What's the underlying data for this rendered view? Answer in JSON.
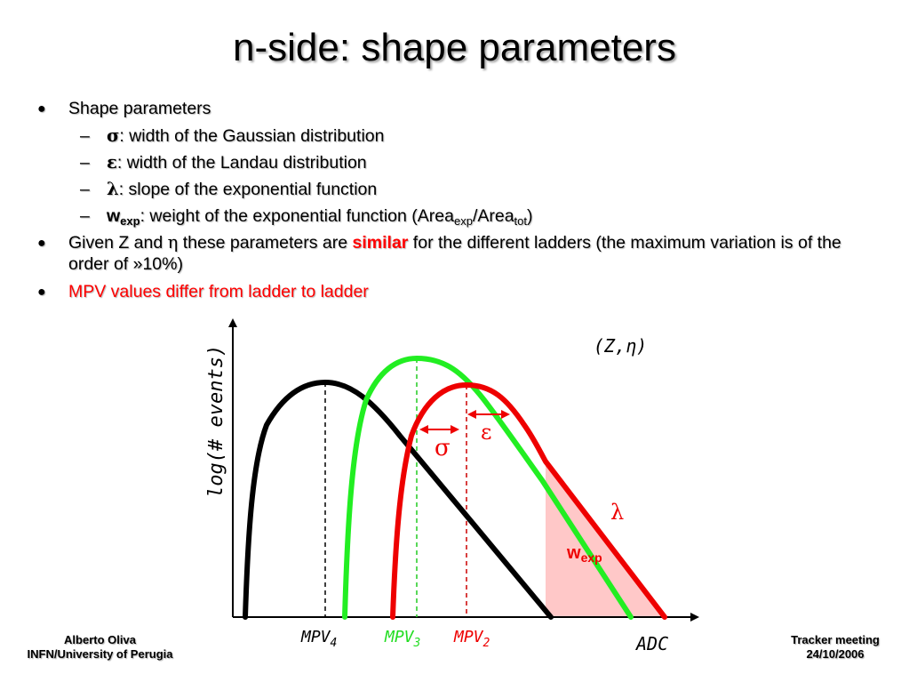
{
  "title": "n-side: shape parameters",
  "bullets": {
    "b1": "Shape parameters",
    "s1_sym": "σ",
    "s1_text": ": width of the Gaussian distribution",
    "s2_sym": "ε",
    "s2_text": ": width of the Landau distribution",
    "s3_sym": "λ",
    "s3_text": ": slope of the exponential function",
    "s4_w": "w",
    "s4_sub": "exp",
    "s4_text": ": weight of the exponential function (Area",
    "s4_sub2": "exp",
    "s4_mid": "/Area",
    "s4_sub3": "tot",
    "s4_end": ")",
    "b2_pre": "Given Z and ",
    "b2_eta": "η",
    "b2_mid": " these parameters are ",
    "b2_similar": "similar",
    "b2_post": " for the different ladders (the maximum variation is of the order of  »10%)",
    "b3": "MPV values differ from ladder to ladder"
  },
  "diagram": {
    "ylabel": "log(# events)",
    "xlabel": "ADC",
    "param_label": "(Z,η)",
    "sigma": "σ",
    "epsilon": "ε",
    "lambda": "λ",
    "wexp_w": "w",
    "wexp_sub": "exp",
    "mpv4": "MPV",
    "mpv4_sub": "4",
    "mpv3": "MPV",
    "mpv3_sub": "3",
    "mpv2": "MPV",
    "mpv2_sub": "2",
    "colors": {
      "black_curve": "#000000",
      "green_curve": "#22ee22",
      "red_curve": "#ee0000",
      "exp_fill": "#ffc8c8"
    }
  },
  "footer": {
    "author": "Alberto Oliva",
    "affiliation": "INFN/University of Perugia",
    "meeting": "Tracker meeting",
    "date": "24/10/2006"
  }
}
